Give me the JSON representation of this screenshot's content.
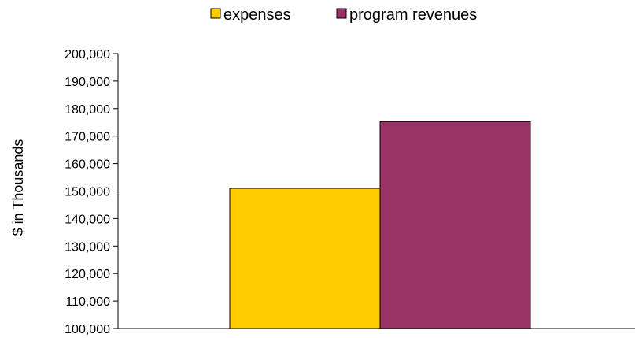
{
  "chart_data": {
    "type": "bar",
    "title": "",
    "xlabel": "",
    "ylabel": "$ in Thousands",
    "categories": [
      ""
    ],
    "series": [
      {
        "name": "expenses",
        "values": [
          151000
        ],
        "color": "#FFCC00"
      },
      {
        "name": "program revenues",
        "values": [
          175300
        ],
        "color": "#993366"
      }
    ],
    "ylim": [
      100000,
      200000
    ],
    "yticks": [
      "100,000",
      "110,000",
      "120,000",
      "130,000",
      "140,000",
      "150,000",
      "160,000",
      "170,000",
      "180,000",
      "190,000",
      "200,000"
    ],
    "grid": false,
    "legend": "top-center"
  }
}
